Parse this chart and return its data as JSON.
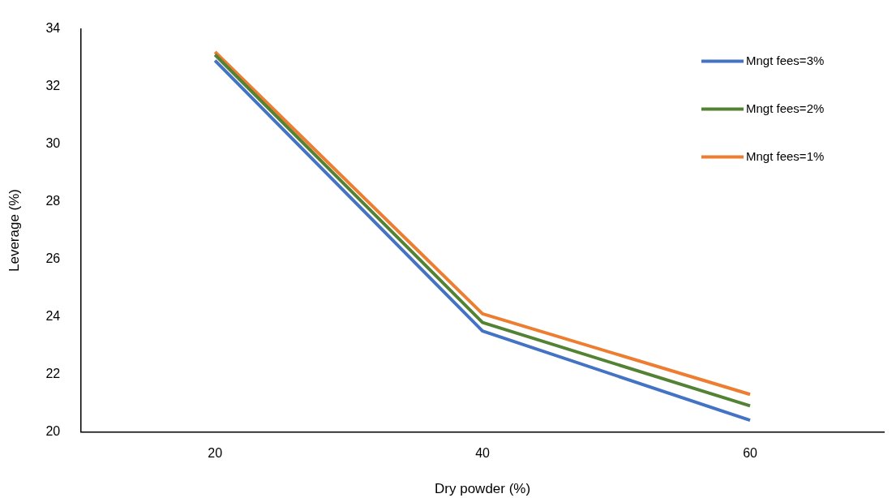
{
  "chart_data": {
    "type": "line",
    "xlabel": "Dry powder (%)",
    "ylabel": "Leverage (%)",
    "categories": [
      "20",
      "40",
      "60"
    ],
    "series": [
      {
        "name": "Mngt fees=3%",
        "color": "#4472c4",
        "values": [
          32.9,
          23.5,
          20.4
        ]
      },
      {
        "name": "Mngt fees=2%",
        "color": "#548235",
        "values": [
          33.1,
          23.8,
          20.9
        ]
      },
      {
        "name": "Mngt fees=1%",
        "color": "#ed7d31",
        "values": [
          33.2,
          24.1,
          21.3
        ]
      }
    ],
    "ylim": [
      20,
      34
    ],
    "yticks": [
      20,
      22,
      24,
      26,
      28,
      30,
      32,
      34
    ],
    "grid": false,
    "legend": "top right",
    "marker": "none",
    "line_style": "solid"
  }
}
